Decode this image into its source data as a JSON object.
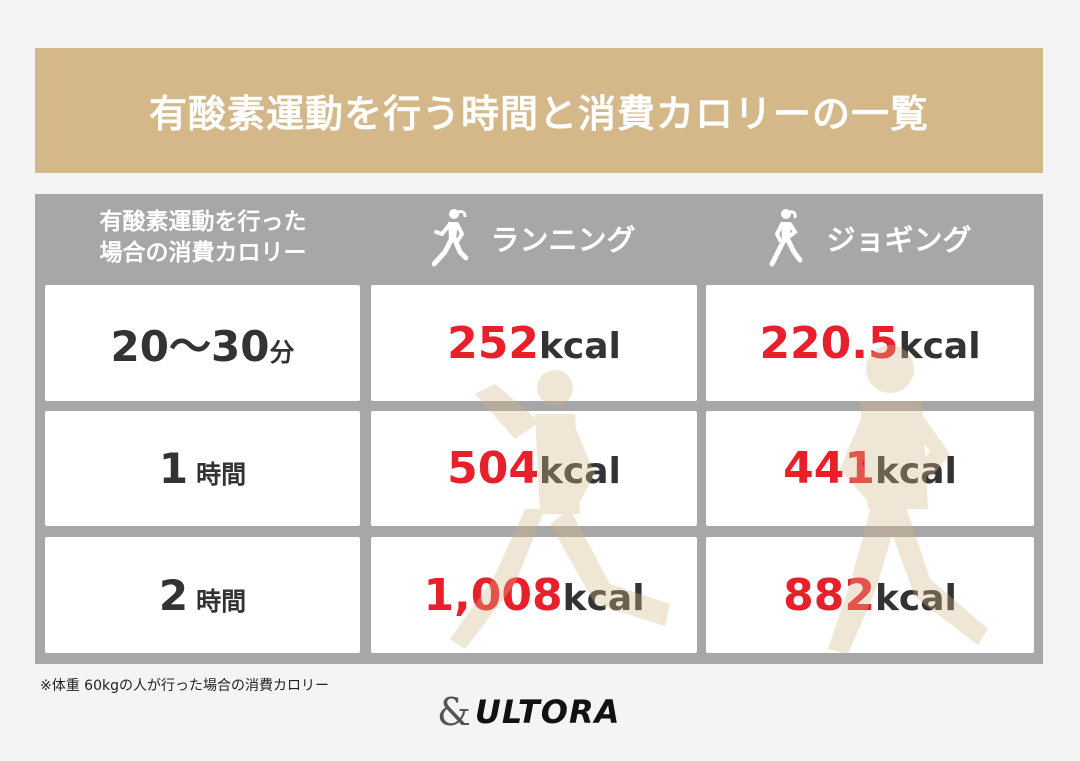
{
  "banner": {
    "title": "有酸素運動を行う時間と消費カロリーの一覧"
  },
  "table": {
    "corner_line1": "有酸素運動を行った",
    "corner_line2": "場合の消費カロリー",
    "col_running": "ランニング",
    "col_jogging": "ジョギング",
    "rows": [
      {
        "time": "20〜30",
        "time_unit": "分",
        "running": "252",
        "jogging": "220.5"
      },
      {
        "time": "1",
        "time_unit": "時間",
        "running": "504",
        "jogging": "441"
      },
      {
        "time": "2",
        "time_unit": "時間",
        "running": "1,008",
        "jogging": "882"
      }
    ],
    "unit": "kcal"
  },
  "note": "※体重 60kgの人が行った場合の消費カロリー",
  "logo": {
    "amp": "&",
    "text": "ULTORA"
  },
  "colors": {
    "banner": "#d5b889",
    "table_bg": "#a7a7a7",
    "value": "#e8202b",
    "watermark": "#ede1cc"
  },
  "icons": {
    "header_running": "runner-icon",
    "header_jogging": "jogger-icon"
  }
}
